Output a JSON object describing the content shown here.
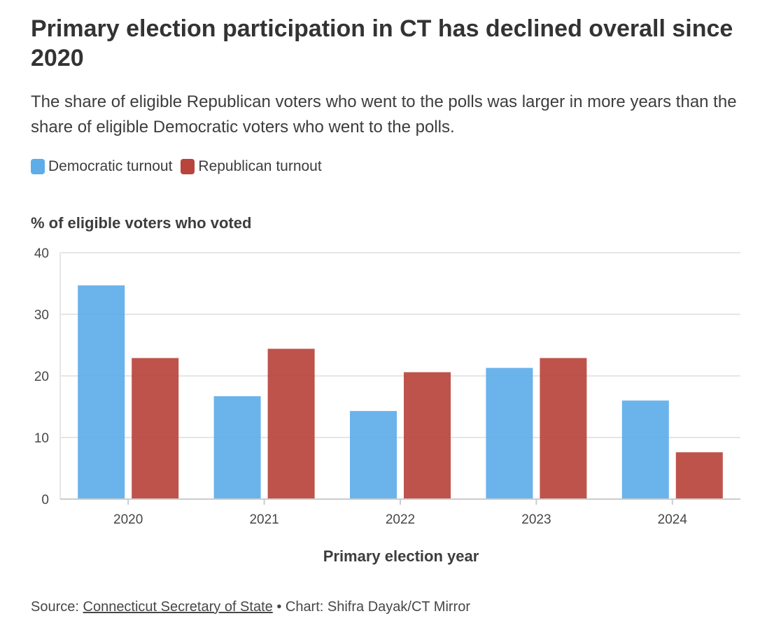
{
  "title": "Primary election participation in CT has declined overall since 2020",
  "subtitle": "The share of eligible Republican voters who went to the polls was larger in more years than the share of eligible Democratic voters who went to the polls.",
  "colors": {
    "democratic": "#5eade9",
    "republican": "#b8443c",
    "grid": "#e6e6e6",
    "axis": "#cccccc"
  },
  "footer": {
    "source_prefix": "Source:",
    "source_link": "Connecticut Secretary of State",
    "credit": "• Chart: Shifra Dayak/CT Mirror"
  },
  "chart_data": {
    "type": "bar",
    "ylabel": "% of eligible voters who voted",
    "xlabel": "Primary election year",
    "categories": [
      "2020",
      "2021",
      "2022",
      "2023",
      "2024"
    ],
    "ylim": [
      0,
      40
    ],
    "yticks": [
      0,
      10,
      20,
      30,
      40
    ],
    "grid": true,
    "legend": "top-left",
    "series": [
      {
        "name": "Democratic turnout",
        "color": "#5eade9",
        "values": [
          34.7,
          16.7,
          14.3,
          21.3,
          16.0
        ]
      },
      {
        "name": "Republican turnout",
        "color": "#b8443c",
        "values": [
          22.9,
          24.4,
          20.6,
          22.9,
          7.6
        ]
      }
    ]
  }
}
